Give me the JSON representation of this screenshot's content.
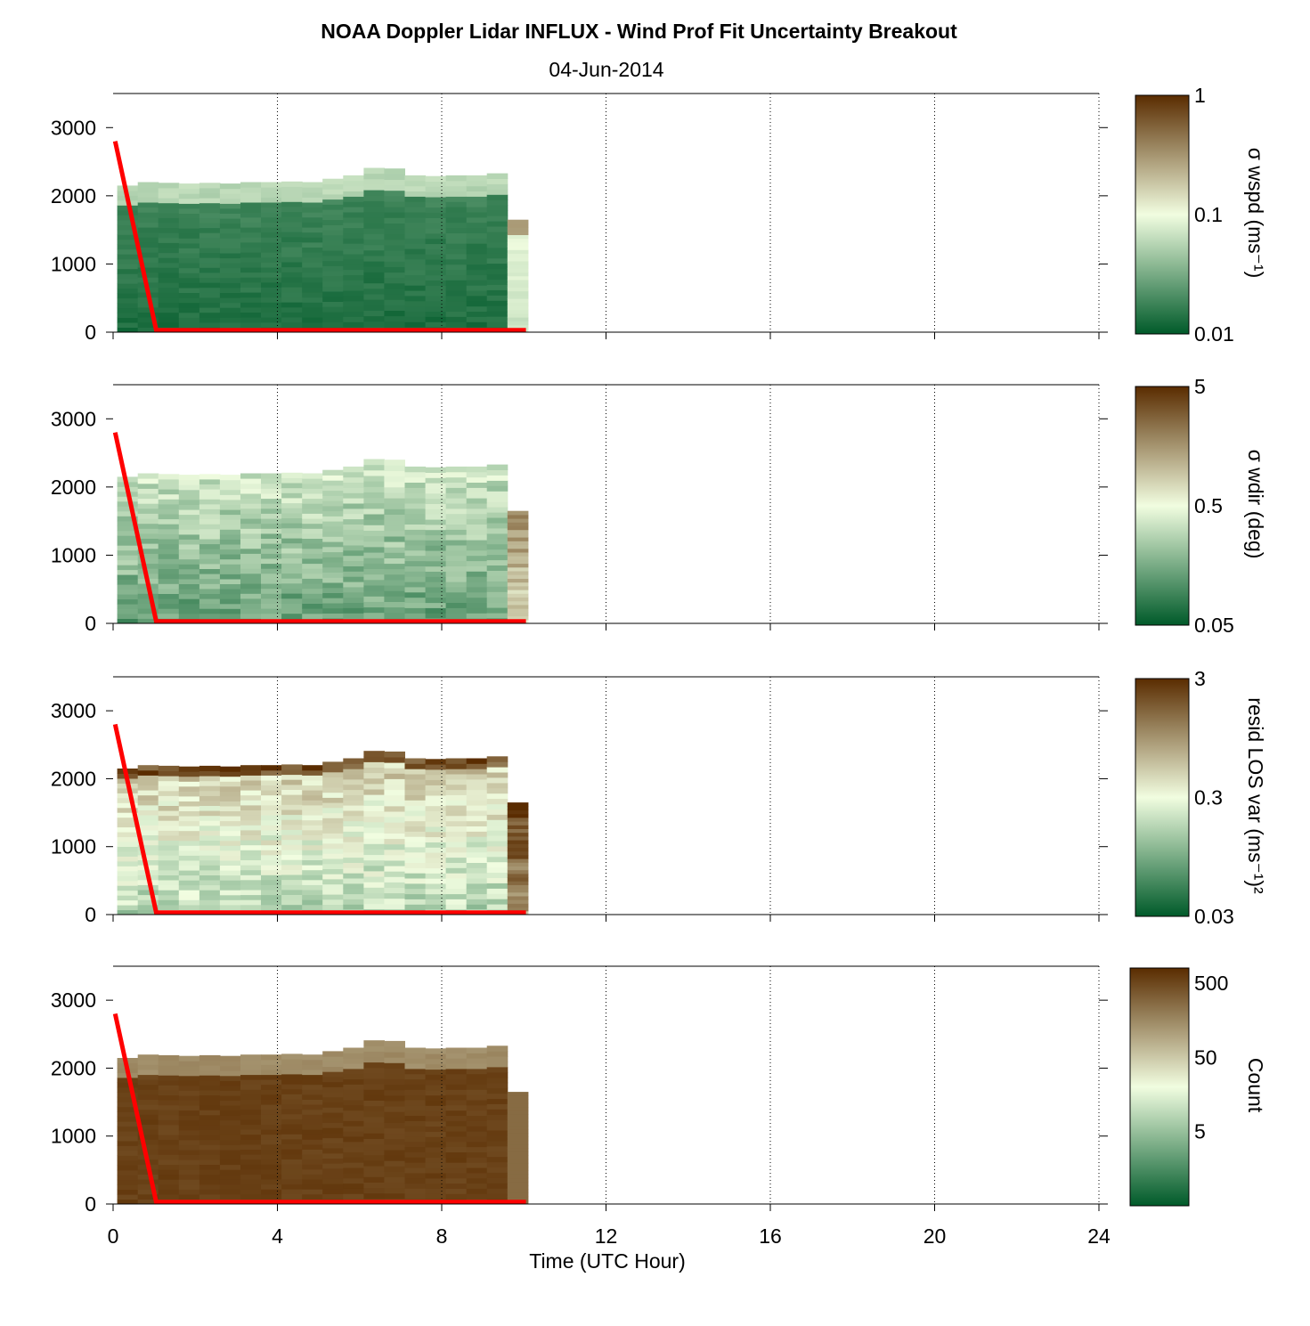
{
  "title": "NOAA Doppler Lidar INFLUX - Wind Prof Fit Uncertainty Breakout",
  "subtitle": "04-Jun-2014",
  "colors": {
    "low": "#005a2a",
    "mid": "#f1fde0",
    "high": "#5a2c00",
    "trace": "#ff0000"
  },
  "chart_data": {
    "type": "heatmap",
    "xlabel": "Time (UTC Hour)",
    "xlim": [
      0,
      24
    ],
    "xticks": [
      0,
      4,
      8,
      12,
      16,
      20,
      24
    ],
    "x_grid": "dotted vertical lines at x ticks",
    "ylim": [
      0,
      3500
    ],
    "yticks": [
      0,
      1000,
      2000,
      3000
    ],
    "time_bins": [
      0.1,
      0.6,
      1.1,
      1.6,
      2.1,
      2.6,
      3.1,
      3.6,
      4.1,
      4.6,
      5.1,
      5.6,
      6.1,
      6.6,
      7.1,
      7.6,
      8.1,
      8.6,
      9.1,
      9.6
    ],
    "bin_width_hr": 0.5,
    "data_top_m": [
      2150,
      2200,
      2190,
      2180,
      2190,
      2180,
      2200,
      2200,
      2210,
      2200,
      2250,
      2300,
      2410,
      2400,
      2300,
      2290,
      2300,
      2300,
      2330,
      1650
    ],
    "red_line": {
      "x": [
        0.05,
        1.05,
        10.05
      ],
      "y": [
        2800,
        30,
        30
      ]
    },
    "panels": [
      {
        "ylabel": "σ wspd (ms⁻¹)",
        "colorbar": {
          "scale": "log",
          "min": 0.01,
          "max": 1,
          "tick_labels": [
            "1",
            "0.1",
            "0.01"
          ],
          "ticks": [
            1,
            0.1,
            0.01
          ]
        },
        "typical_level": 0.08,
        "note_levels": "values mostly 0.01–0.03 below 2000 m, rising to ~0.1 near data top"
      },
      {
        "ylabel": "σ wdir (deg)",
        "colorbar": {
          "scale": "log",
          "min": 0.05,
          "max": 5,
          "tick_labels": [
            "5",
            "0.5",
            "0.05"
          ],
          "ticks": [
            5,
            0.5,
            0.05
          ]
        },
        "typical_level": 0.22,
        "note_levels": "values mostly 0.1–0.3 deg, higher (~1) in last bin"
      },
      {
        "ylabel": "resid LOS var (ms⁻¹)²",
        "colorbar": {
          "scale": "log",
          "min": 0.03,
          "max": 3,
          "tick_labels": [
            "3",
            "0.3",
            "0.03"
          ],
          "ticks": [
            3,
            0.3,
            0.03
          ]
        },
        "typical_level": 0.4,
        "note_levels": "values ~0.1–0.5 in mid layer, up to 3 near top and in last bin"
      },
      {
        "ylabel": "Count",
        "colorbar": {
          "scale": "log",
          "min": 0.5,
          "max": 800,
          "tick_labels": [
            "500",
            "50",
            "5"
          ],
          "ticks": [
            500,
            50,
            5
          ]
        },
        "typical_level": 0.93,
        "note_levels": "counts ~500 throughout, lower (~50–100) near data top"
      }
    ]
  }
}
